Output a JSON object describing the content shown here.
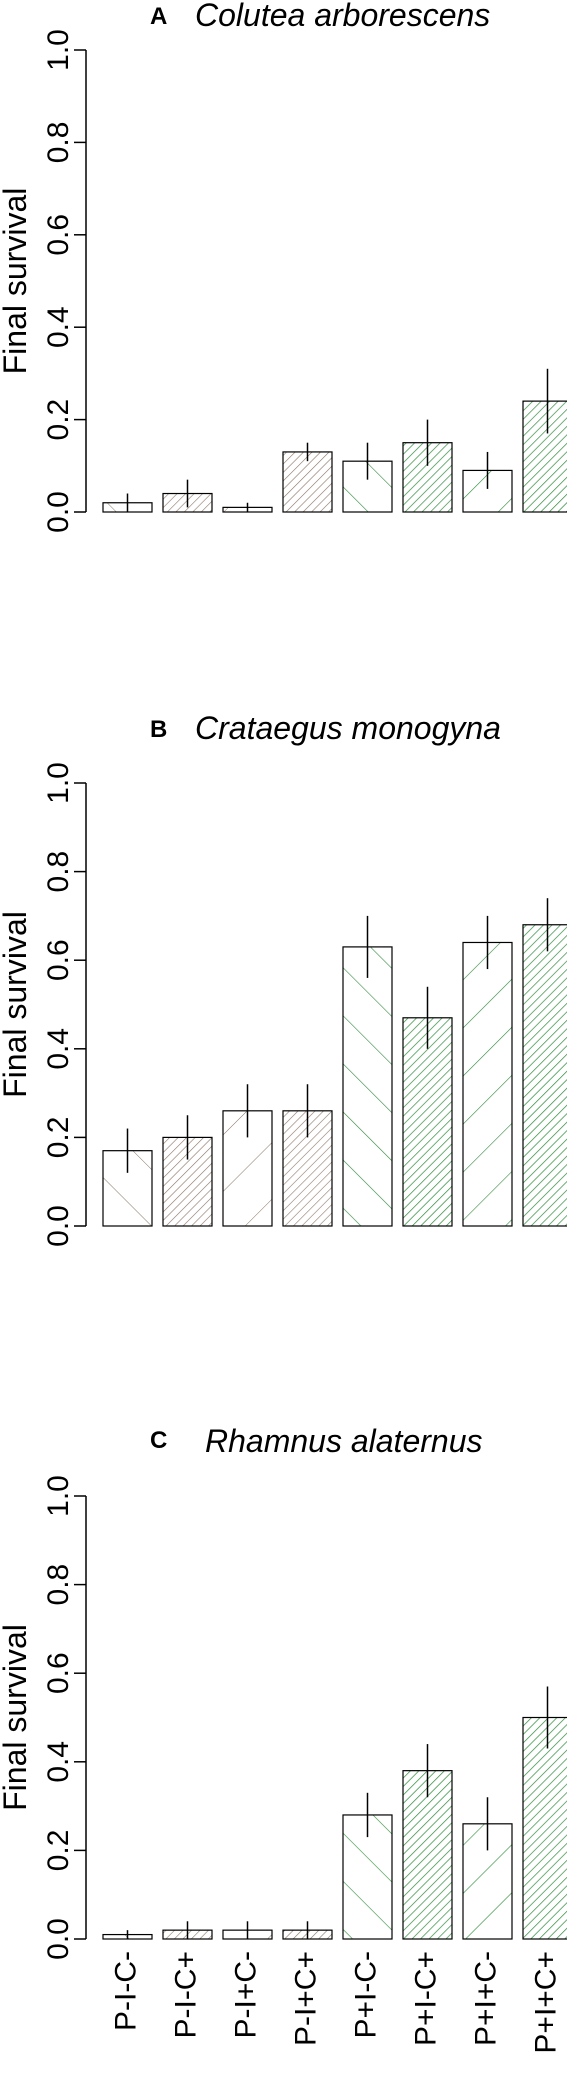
{
  "colors": {
    "brown_hatch": "#8c7767",
    "green_hatch": "#2e8b3a",
    "axis": "#000000"
  },
  "category_labels": [
    "P-I-C-",
    "P-I-C+",
    "P-I+C-",
    "P-I+C+",
    "P+I-C-",
    "P+I-C+",
    "P+I+C-",
    "P+I+C+"
  ],
  "chart_data": [
    {
      "type": "bar",
      "panel_letter": "A",
      "title": "Colutea arborescens",
      "ylabel": "Final survival",
      "xlabel": "",
      "ylim": [
        0,
        1.0
      ],
      "yticks": [
        "0.0",
        "0.2",
        "0.4",
        "0.6",
        "0.8",
        "1.0"
      ],
      "categories": [
        "P-I-C-",
        "P-I-C+",
        "P-I+C-",
        "P-I+C+",
        "P+I-C-",
        "P+I-C+",
        "P+I+C-",
        "P+I+C+"
      ],
      "values": [
        0.02,
        0.04,
        0.01,
        0.13,
        0.11,
        0.15,
        0.09,
        0.24
      ],
      "error_low": [
        0.0,
        0.01,
        0.0,
        0.11,
        0.07,
        0.1,
        0.05,
        0.17
      ],
      "error_high": [
        0.04,
        0.07,
        0.02,
        0.15,
        0.15,
        0.2,
        0.13,
        0.31
      ],
      "show_category_labels": false
    },
    {
      "type": "bar",
      "panel_letter": "B",
      "title": "Crataegus monogyna",
      "ylabel": "Final survival",
      "xlabel": "",
      "ylim": [
        0,
        1.0
      ],
      "yticks": [
        "0.0",
        "0.2",
        "0.4",
        "0.6",
        "0.8",
        "1.0"
      ],
      "categories": [
        "P-I-C-",
        "P-I-C+",
        "P-I+C-",
        "P-I+C+",
        "P+I-C-",
        "P+I-C+",
        "P+I+C-",
        "P+I+C+"
      ],
      "values": [
        0.17,
        0.2,
        0.26,
        0.26,
        0.63,
        0.47,
        0.64,
        0.68
      ],
      "error_low": [
        0.12,
        0.15,
        0.2,
        0.2,
        0.56,
        0.4,
        0.58,
        0.62
      ],
      "error_high": [
        0.22,
        0.25,
        0.32,
        0.32,
        0.7,
        0.54,
        0.7,
        0.74
      ],
      "show_category_labels": false
    },
    {
      "type": "bar",
      "panel_letter": "C",
      "title": "Rhamnus alaternus",
      "ylabel": "Final survival",
      "xlabel": "",
      "ylim": [
        0,
        1.0
      ],
      "yticks": [
        "0.0",
        "0.2",
        "0.4",
        "0.6",
        "0.8",
        "1.0"
      ],
      "categories": [
        "P-I-C-",
        "P-I-C+",
        "P-I+C-",
        "P-I+C+",
        "P+I-C-",
        "P+I-C+",
        "P+I+C-",
        "P+I+C+"
      ],
      "values": [
        0.01,
        0.02,
        0.02,
        0.02,
        0.28,
        0.38,
        0.26,
        0.5
      ],
      "error_low": [
        0.0,
        0.0,
        0.0,
        0.0,
        0.23,
        0.32,
        0.2,
        0.43
      ],
      "error_high": [
        0.02,
        0.04,
        0.04,
        0.04,
        0.33,
        0.44,
        0.32,
        0.57
      ],
      "show_category_labels": true
    }
  ]
}
